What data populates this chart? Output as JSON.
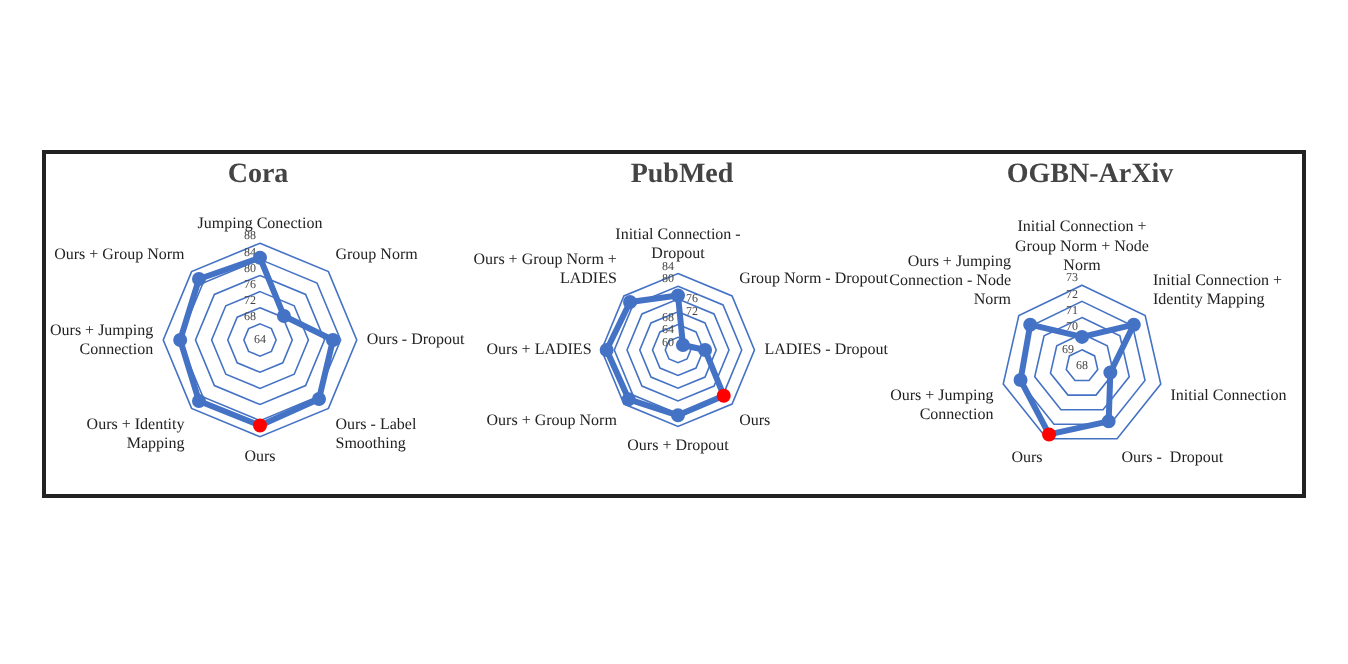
{
  "chart_data": [
    {
      "type": "radar",
      "title": "Cora",
      "categories": [
        "Jumping Conection",
        "Group Norm",
        "Ours - Dropout",
        "Ours - Label Smoothing",
        "Ours",
        "Ours + Identity Mapping",
        "Ours + Jumping Connection",
        "Ours + Group Norm"
      ],
      "ylim": [
        64,
        88
      ],
      "yticks": [
        64,
        68,
        72,
        76,
        80,
        84,
        88
      ],
      "grid": true,
      "marker": "circle",
      "legend": false,
      "series": [
        {
          "color": "#4472c4",
          "colors": [
            "#4472c4",
            "#4472c4",
            "#4472c4",
            "#4472c4",
            "#ff0000",
            "#4472c4",
            "#4472c4",
            "#4472c4"
          ],
          "values": [
            84.4,
            72.4,
            82.1,
            84.7,
            85.2,
            85.4,
            83.8,
            85.4
          ]
        }
      ]
    },
    {
      "type": "radar",
      "title": "PubMed",
      "categories": [
        "Initial Connection - Dropout",
        "Group Norm - Dropout",
        "LADIES - Dropout",
        "Ours",
        "Ours + Dropout",
        "Ours + Group Norm",
        "Ours + LADIES",
        "Ours + Group Norm + LADIES"
      ],
      "ylim": [
        60,
        84
      ],
      "yticks": [
        60,
        64,
        68,
        72,
        76,
        80,
        84
      ],
      "grid": true,
      "marker": "circle",
      "legend": false,
      "series": [
        {
          "color": "#4472c4",
          "colors": [
            "#4472c4",
            "#4472c4",
            "#4472c4",
            "#ff0000",
            "#4472c4",
            "#4472c4",
            "#4472c4",
            "#4472c4"
          ],
          "values": [
            77.1,
            62.2,
            68.5,
            80.3,
            80.5,
            81.9,
            82.4,
            81.3
          ]
        }
      ]
    },
    {
      "type": "radar",
      "title": "OGBN-ArXiv",
      "categories": [
        "Initial Connection + Group Norm + Node Norm",
        "Initial Connection + Identity Mapping",
        "Initial Connection",
        "Ours -  Dropout",
        "Ours",
        "Ours + Jumping Connection",
        "Ours + Jumping Connection - Node Norm"
      ],
      "ylim": [
        68,
        73
      ],
      "yticks": [
        68,
        69,
        70,
        71,
        72,
        73
      ],
      "grid": true,
      "marker": "circle",
      "legend": false,
      "series": [
        {
          "color": "#4472c4",
          "colors": [
            "#4472c4",
            "#4472c4",
            "#4472c4",
            "#4472c4",
            "#ff0000",
            "#4472c4",
            "#4472c4"
          ],
          "values": [
            69.8,
            72.1,
            69.8,
            71.8,
            72.7,
            71.9,
            72.1
          ]
        }
      ]
    }
  ]
}
